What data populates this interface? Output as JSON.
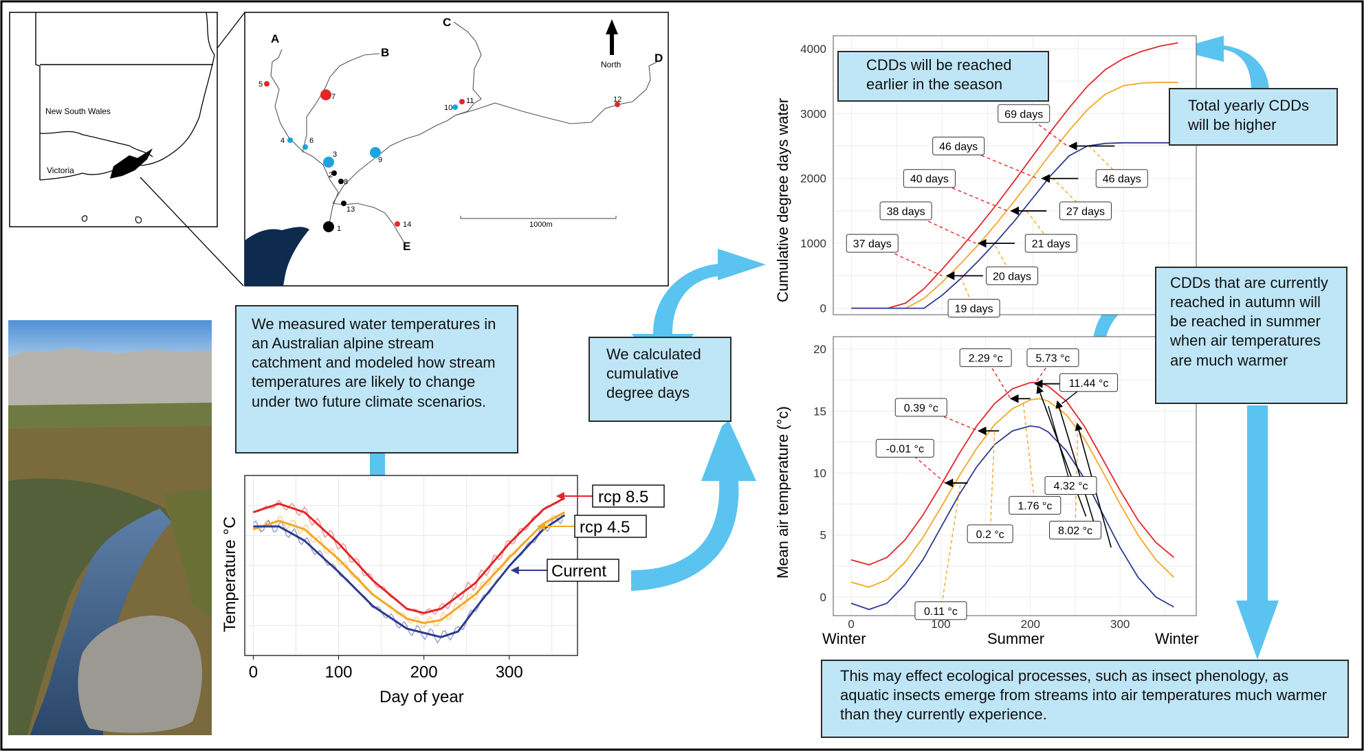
{
  "map": {
    "states": [
      "New South Wales",
      "Victoria"
    ],
    "streams": [
      "A",
      "B",
      "C",
      "D",
      "E"
    ],
    "north_label": "North",
    "scale_label": "1000m",
    "sites": [
      {
        "id": "1",
        "color": "#000000"
      },
      {
        "id": "2",
        "color": "#000000"
      },
      {
        "id": "3",
        "color": "#1ba3e0"
      },
      {
        "id": "4",
        "color": "#1ba3e0"
      },
      {
        "id": "5",
        "color": "#e3262a"
      },
      {
        "id": "6",
        "color": "#1ba3e0"
      },
      {
        "id": "7",
        "color": "#e3262a"
      },
      {
        "id": "8",
        "color": "#000000"
      },
      {
        "id": "9",
        "color": "#1ba3e0"
      },
      {
        "id": "10",
        "color": "#1ba3e0"
      },
      {
        "id": "11",
        "color": "#e3262a"
      },
      {
        "id": "12",
        "color": "#e3262a"
      },
      {
        "id": "13",
        "color": "#000000"
      },
      {
        "id": "14",
        "color": "#e3262a"
      }
    ]
  },
  "notes": {
    "measured": "We measured water temperatures in an Australian alpine stream catchment and modeled how stream temperatures are likely to change under two future climate scenarios.",
    "calculated": "We calculated cumulative degree days",
    "earlier": "CDDs will be reached earlier in the season",
    "total": "Total yearly CDDs will be higher",
    "autumn": "CDDs that are currently reached in autumn will be reached in summer when air temperatures are much warmer",
    "effect": "This may effect ecological processes, such as insect phenology, as aquatic insects emerge from streams into air temperatures much warmer than they currently experience."
  },
  "colors": {
    "rcp85": "#e3262a",
    "rcp45": "#f5a623",
    "current": "#2e3a8f",
    "note_bg": "#bfe6f7",
    "arrow": "#5bc3f0"
  },
  "chart_data": [
    {
      "type": "line",
      "xlabel": "Day of year",
      "ylabel": "Temperature °C",
      "xlim": [
        -10,
        380
      ],
      "xticks": [
        0,
        100,
        200,
        300
      ],
      "series": [
        {
          "name": "rcp 8.5",
          "color": "#e3262a",
          "x": [
            0,
            30,
            60,
            100,
            140,
            180,
            200,
            220,
            260,
            300,
            340,
            365
          ],
          "y": [
            0.78,
            0.84,
            0.78,
            0.56,
            0.3,
            0.1,
            0.07,
            0.1,
            0.28,
            0.56,
            0.8,
            0.88
          ]
        },
        {
          "name": "rcp 4.5",
          "color": "#f5a623",
          "x": [
            0,
            30,
            60,
            100,
            140,
            180,
            200,
            220,
            260,
            300,
            340,
            365
          ],
          "y": [
            0.66,
            0.72,
            0.66,
            0.45,
            0.2,
            0.03,
            0.0,
            0.02,
            0.2,
            0.46,
            0.7,
            0.78
          ]
        },
        {
          "name": "Current",
          "color": "#2e3a8f",
          "x": [
            0,
            30,
            60,
            100,
            140,
            180,
            220,
            240,
            260,
            300,
            340,
            365
          ],
          "y": [
            0.68,
            0.68,
            0.58,
            0.36,
            0.12,
            -0.04,
            -0.1,
            -0.06,
            0.1,
            0.4,
            0.66,
            0.76
          ]
        }
      ]
    },
    {
      "type": "line",
      "ylabel": "Cumulative  degree days water",
      "xlim": [
        -20,
        380
      ],
      "ylim": [
        -100,
        4200
      ],
      "yticks": [
        0,
        1000,
        2000,
        3000,
        4000
      ],
      "series": [
        {
          "name": "rcp 8.5",
          "color": "#e3262a",
          "x": [
            0,
            40,
            60,
            80,
            100,
            120,
            140,
            160,
            180,
            200,
            220,
            240,
            260,
            280,
            300,
            320,
            340,
            360
          ],
          "y": [
            0,
            0,
            80,
            300,
            600,
            920,
            1250,
            1600,
            1970,
            2350,
            2730,
            3090,
            3420,
            3680,
            3850,
            3960,
            4040,
            4090
          ]
        },
        {
          "name": "rcp 4.5",
          "color": "#f5a623",
          "x": [
            0,
            60,
            80,
            100,
            120,
            140,
            160,
            180,
            200,
            220,
            240,
            260,
            280,
            300,
            320,
            340,
            360
          ],
          "y": [
            0,
            0,
            150,
            400,
            680,
            980,
            1310,
            1660,
            2020,
            2390,
            2740,
            3060,
            3300,
            3430,
            3470,
            3480,
            3480
          ]
        },
        {
          "name": "Current",
          "color": "#2e3a8f",
          "x": [
            0,
            80,
            100,
            120,
            140,
            160,
            180,
            200,
            220,
            240,
            260,
            280,
            300,
            320,
            360
          ],
          "y": [
            0,
            0,
            200,
            450,
            730,
            1030,
            1350,
            1700,
            2050,
            2350,
            2500,
            2540,
            2550,
            2550,
            2550
          ]
        }
      ],
      "labels": [
        {
          "text": "37 days",
          "color": "#e3262a",
          "x": 23,
          "y": 1000,
          "ax": 100,
          "ay": 500
        },
        {
          "text": "38 days",
          "color": "#e3262a",
          "x": 60,
          "y": 1500,
          "ax": 137,
          "ay": 1000
        },
        {
          "text": "40 days",
          "color": "#e3262a",
          "x": 86,
          "y": 2000,
          "ax": 172,
          "ay": 1500
        },
        {
          "text": "46 days",
          "color": "#e3262a",
          "x": 118,
          "y": 2500,
          "ax": 205,
          "ay": 2000
        },
        {
          "text": "69 days",
          "color": "#e3262a",
          "x": 190,
          "y": 3000,
          "ax": 238,
          "ay": 2500
        },
        {
          "text": "19 days",
          "color": "#f5a623",
          "x": 135,
          "y": 0,
          "ax": 120,
          "ay": 500
        },
        {
          "text": "20 days",
          "color": "#f5a623",
          "x": 177,
          "y": 500,
          "ax": 157,
          "ay": 1000
        },
        {
          "text": "21 days",
          "color": "#f5a623",
          "x": 220,
          "y": 1000,
          "ax": 193,
          "ay": 1500
        },
        {
          "text": "27 days",
          "color": "#f5a623",
          "x": 258,
          "y": 1500,
          "ax": 222,
          "ay": 2000
        },
        {
          "text": "46 days",
          "color": "#f5a623",
          "x": 298,
          "y": 2000,
          "ax": 262,
          "ay": 2500
        }
      ]
    },
    {
      "type": "line",
      "ylabel": "Mean air temperature (°c)",
      "xlim": [
        -20,
        385
      ],
      "ylim": [
        -1.5,
        21
      ],
      "xticks": [
        0,
        100,
        200,
        300
      ],
      "yticks": [
        0,
        5,
        10,
        15,
        20
      ],
      "xcategories": [
        "Winter",
        "Summer",
        "Winter"
      ],
      "series": [
        {
          "name": "rcp 8.5",
          "color": "#e3262a",
          "x": [
            0,
            20,
            40,
            60,
            80,
            100,
            120,
            140,
            160,
            180,
            200,
            210,
            220,
            240,
            260,
            280,
            300,
            320,
            340,
            360
          ],
          "y": [
            3.0,
            2.6,
            3.2,
            4.6,
            6.6,
            9.0,
            11.5,
            13.8,
            15.6,
            16.8,
            17.3,
            17.3,
            17.0,
            15.8,
            13.8,
            11.2,
            8.6,
            6.2,
            4.4,
            3.2
          ]
        },
        {
          "name": "rcp 4.5",
          "color": "#f5a623",
          "x": [
            0,
            20,
            40,
            60,
            80,
            100,
            120,
            140,
            160,
            180,
            200,
            210,
            220,
            240,
            260,
            280,
            300,
            320,
            340,
            360
          ],
          "y": [
            1.2,
            0.8,
            1.4,
            2.8,
            4.8,
            7.2,
            9.7,
            12.0,
            13.9,
            15.2,
            15.9,
            16.0,
            15.8,
            14.7,
            12.8,
            10.2,
            7.5,
            5.0,
            3.0,
            1.6
          ]
        },
        {
          "name": "Current",
          "color": "#2e3a8f",
          "x": [
            0,
            20,
            40,
            60,
            80,
            100,
            120,
            140,
            160,
            180,
            200,
            210,
            220,
            240,
            260,
            280,
            300,
            320,
            340,
            360
          ],
          "y": [
            -0.5,
            -1.0,
            -0.5,
            1.0,
            3.0,
            5.6,
            8.2,
            10.5,
            12.3,
            13.4,
            13.8,
            13.7,
            13.3,
            11.8,
            9.6,
            6.8,
            4.0,
            1.6,
            0.0,
            -0.8
          ]
        }
      ],
      "labels": [
        {
          "text": "-0.01 °c",
          "color": "#e3262a",
          "x": 60,
          "y": 12,
          "ax": 105,
          "ay": 9.2
        },
        {
          "text": "0.39 °c",
          "color": "#e3262a",
          "x": 78,
          "y": 15.3,
          "ax": 142,
          "ay": 13.4
        },
        {
          "text": "2.29 °c",
          "color": "#e3262a",
          "x": 150,
          "y": 19.3,
          "ax": 178,
          "ay": 16.0
        },
        {
          "text": "5.73 °c",
          "color": "#e3262a",
          "x": 225,
          "y": 19.3,
          "ax": 205,
          "ay": 17.2
        },
        {
          "text": "11.44 °c",
          "color": "#000000",
          "x": 265,
          "y": 17.3,
          "ax": 235,
          "ay": 15.6
        },
        {
          "text": "0.11 °c",
          "color": "#f5a623",
          "x": 100,
          "y": -1.1,
          "ax": 122,
          "ay": 9.2
        },
        {
          "text": "0.2 °c",
          "color": "#f5a623",
          "x": 155,
          "y": 5.1,
          "ax": 160,
          "ay": 13.3
        },
        {
          "text": "1.76 °c",
          "color": "#f5a623",
          "x": 205,
          "y": 7.4,
          "ax": 192,
          "ay": 15.6
        },
        {
          "text": "4.32 °c",
          "color": "#000000",
          "x": 245,
          "y": 9.0,
          "ax": 220,
          "ay": 15.4
        },
        {
          "text": "8.02 °c",
          "color": "#f5a623",
          "x": 250,
          "y": 5.4,
          "ax": 253,
          "ay": 14.0
        }
      ],
      "shift_arrows": [
        {
          "x1": 130,
          "x2": 105,
          "y": 9.2,
          "color": "#000000"
        },
        {
          "x1": 165,
          "x2": 142,
          "y": 13.4,
          "color": "#000000"
        },
        {
          "x1": 200,
          "x2": 178,
          "y": 16.0,
          "color": "#000000"
        },
        {
          "x1": 278,
          "x2": 205,
          "y": 17.2,
          "color": "#000000"
        }
      ]
    }
  ]
}
